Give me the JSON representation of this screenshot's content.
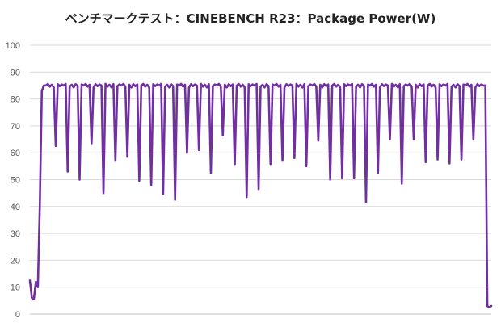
{
  "chart_data": {
    "type": "line",
    "title": "ベンチマークテスト：CINEBENCH R23：Package Power(W)",
    "xlabel": "",
    "ylabel": "",
    "ylim": [
      0,
      100
    ],
    "yticks": [
      "0",
      "10",
      "20",
      "30",
      "40",
      "50",
      "60",
      "70",
      "80",
      "90",
      "100"
    ],
    "grid": true,
    "legend": "none",
    "series": [
      {
        "color": "#7030a0",
        "baseline": 85,
        "start": [
          12.5,
          6,
          5.5,
          12,
          10,
          41,
          83,
          85
        ],
        "dips": [
          62.5,
          53,
          50,
          63.5,
          45,
          57,
          58.5,
          49.5,
          48,
          44.5,
          42.5,
          60,
          61,
          52.5,
          66.5,
          55.5,
          43.5,
          46.5,
          55.5,
          57,
          58,
          55,
          64.5,
          50,
          50.5,
          50.5,
          41.5,
          52.5,
          65,
          48.5,
          65,
          56.5,
          57.5,
          56,
          57.5,
          65
        ],
        "end": [
          85,
          3,
          2.5,
          3
        ]
      }
    ]
  }
}
